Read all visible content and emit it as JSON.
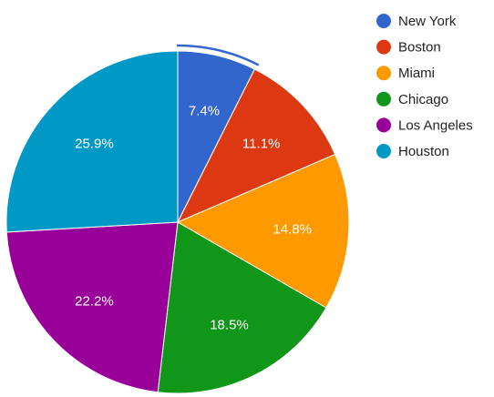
{
  "chart_data": {
    "type": "pie",
    "categories": [
      "New York",
      "Boston",
      "Miami",
      "Chicago",
      "Los Angeles",
      "Houston"
    ],
    "values": [
      7.4,
      11.1,
      14.8,
      18.5,
      22.2,
      25.9
    ],
    "labels": [
      "7.4%",
      "11.1%",
      "14.8%",
      "18.5%",
      "22.2%",
      "25.9%"
    ],
    "colors": [
      "#3366cc",
      "#dc3912",
      "#ff9900",
      "#109618",
      "#990099",
      "#0099c6"
    ],
    "highlighted_slice": "New York",
    "legend_position": "right",
    "title": ""
  }
}
